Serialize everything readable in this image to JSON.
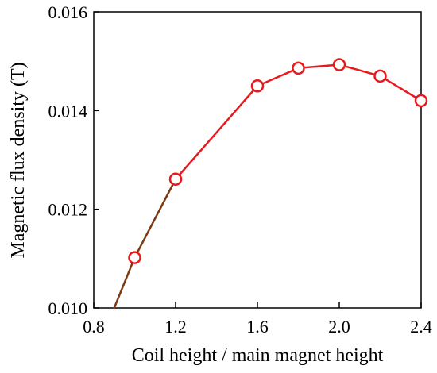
{
  "chart_data": {
    "type": "line",
    "title": "",
    "xlabel": "Coil height / main magnet height",
    "ylabel": "Magnetic flux density (T)",
    "xlim": [
      0.8,
      2.4
    ],
    "ylim": [
      0.01,
      0.016
    ],
    "x_ticks": [
      0.8,
      1.2,
      1.6,
      2.0,
      2.4
    ],
    "x_tick_labels": [
      "0.8",
      "1.2",
      "1.6",
      "2.0",
      "2.4"
    ],
    "y_ticks": [
      0.01,
      0.012,
      0.014,
      0.016
    ],
    "y_tick_labels": [
      "0.010",
      "0.012",
      "0.014",
      "0.016"
    ],
    "grid": false,
    "legend": "none",
    "series": [
      {
        "x": [
          0.9,
          1.0,
          1.2,
          1.6,
          1.8,
          2.0,
          2.2,
          2.4
        ],
        "y": [
          0.01,
          0.01102,
          0.01261,
          0.0145,
          0.01486,
          0.01493,
          0.0147,
          0.0142
        ],
        "marker_x": [
          1.0,
          1.2,
          1.6,
          1.8,
          2.0,
          2.2,
          2.4
        ],
        "marker_y": [
          0.01102,
          0.01261,
          0.0145,
          0.01486,
          0.01493,
          0.0147,
          0.0142
        ],
        "color": "#e8191c",
        "low_segment_color": "#7b3a12",
        "marker": "open-circle"
      }
    ]
  }
}
